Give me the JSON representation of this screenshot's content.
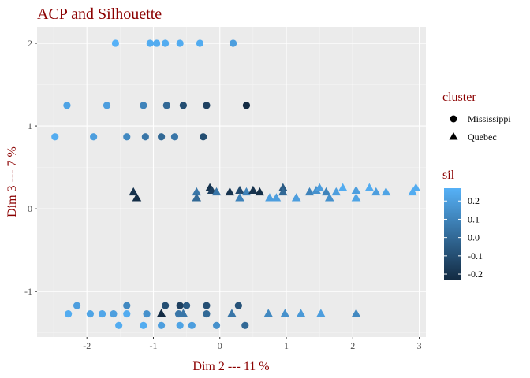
{
  "chart_data": {
    "type": "scatter",
    "title": "ACP and Silhouette",
    "xlabel": "Dim 2 --- 11 %",
    "ylabel": "Dim 3 --- 7 %",
    "xlim": [
      -2.75,
      3.1
    ],
    "ylim": [
      -1.55,
      2.2
    ],
    "xticks": [
      -2,
      -1,
      0,
      1,
      2,
      3
    ],
    "yticks": [
      -1,
      0,
      1,
      2
    ],
    "xtick_labels": [
      "-2",
      "-1",
      "0",
      "1",
      "2",
      "3"
    ],
    "ytick_labels": [
      "-1",
      "0",
      "1",
      "2"
    ],
    "grid": true,
    "legend_shape": {
      "title": "cluster",
      "entries": [
        {
          "label": "Mississippi",
          "shape": "circle"
        },
        {
          "label": "Quebec",
          "shape": "triangle"
        }
      ]
    },
    "legend_color": {
      "title": "sil",
      "low_color": "#132B43",
      "high_color": "#56B1F7",
      "range": [
        -0.23,
        0.27
      ],
      "ticks": [
        0.2,
        0.1,
        0.0,
        -0.1,
        -0.2
      ],
      "tick_labels": [
        "0.2",
        "0.1",
        "0.0",
        "-0.1",
        "-0.2"
      ]
    },
    "series": [
      {
        "name": "Mississippi",
        "shape": "circle",
        "points": [
          {
            "x": -1.57,
            "y": 2.0,
            "sil": 0.27
          },
          {
            "x": -1.05,
            "y": 2.0,
            "sil": 0.25
          },
          {
            "x": -0.95,
            "y": 2.0,
            "sil": 0.25
          },
          {
            "x": -0.82,
            "y": 2.0,
            "sil": 0.25
          },
          {
            "x": -0.6,
            "y": 2.0,
            "sil": 0.25
          },
          {
            "x": -0.3,
            "y": 2.0,
            "sil": 0.25
          },
          {
            "x": 0.2,
            "y": 2.0,
            "sil": 0.2
          },
          {
            "x": -2.3,
            "y": 1.25,
            "sil": 0.22
          },
          {
            "x": -1.7,
            "y": 1.25,
            "sil": 0.2
          },
          {
            "x": -1.15,
            "y": 1.25,
            "sil": 0.1
          },
          {
            "x": -0.8,
            "y": 1.25,
            "sil": 0.0
          },
          {
            "x": -0.55,
            "y": 1.25,
            "sil": -0.1
          },
          {
            "x": -0.2,
            "y": 1.25,
            "sil": -0.15
          },
          {
            "x": 0.4,
            "y": 1.25,
            "sil": -0.23
          },
          {
            "x": -2.48,
            "y": 0.87,
            "sil": 0.25
          },
          {
            "x": -1.9,
            "y": 0.87,
            "sil": 0.2
          },
          {
            "x": -1.4,
            "y": 0.87,
            "sil": 0.12
          },
          {
            "x": -1.12,
            "y": 0.87,
            "sil": 0.05
          },
          {
            "x": -0.88,
            "y": 0.87,
            "sil": 0.0
          },
          {
            "x": -0.68,
            "y": 0.87,
            "sil": 0.05
          },
          {
            "x": -0.25,
            "y": 0.87,
            "sil": -0.1
          },
          {
            "x": -2.15,
            "y": -1.17,
            "sil": 0.2
          },
          {
            "x": -1.4,
            "y": -1.17,
            "sil": 0.12
          },
          {
            "x": -0.82,
            "y": -1.17,
            "sil": -0.1
          },
          {
            "x": -0.6,
            "y": -1.17,
            "sil": -0.15
          },
          {
            "x": -0.5,
            "y": -1.17,
            "sil": -0.05
          },
          {
            "x": -0.2,
            "y": -1.17,
            "sil": -0.1
          },
          {
            "x": 0.28,
            "y": -1.17,
            "sil": -0.08
          },
          {
            "x": -2.28,
            "y": -1.27,
            "sil": 0.25
          },
          {
            "x": -1.95,
            "y": -1.27,
            "sil": 0.22
          },
          {
            "x": -1.77,
            "y": -1.27,
            "sil": 0.23
          },
          {
            "x": -1.6,
            "y": -1.27,
            "sil": 0.2
          },
          {
            "x": -1.4,
            "y": -1.27,
            "sil": 0.25
          },
          {
            "x": -1.1,
            "y": -1.27,
            "sil": 0.15
          },
          {
            "x": -0.62,
            "y": -1.27,
            "sil": 0.05
          },
          {
            "x": -0.2,
            "y": -1.27,
            "sil": 0.0
          },
          {
            "x": -1.52,
            "y": -1.41,
            "sil": 0.25
          },
          {
            "x": -1.15,
            "y": -1.41,
            "sil": 0.25
          },
          {
            "x": -0.88,
            "y": -1.41,
            "sil": 0.2
          },
          {
            "x": -0.6,
            "y": -1.41,
            "sil": 0.22
          },
          {
            "x": -0.42,
            "y": -1.41,
            "sil": 0.2
          },
          {
            "x": -0.05,
            "y": -1.41,
            "sil": 0.15
          },
          {
            "x": 0.38,
            "y": -1.41,
            "sil": 0.0
          }
        ]
      },
      {
        "name": "Quebec",
        "shape": "triangle",
        "points": [
          {
            "x": -1.3,
            "y": 0.2,
            "sil": -0.2
          },
          {
            "x": -1.25,
            "y": 0.13,
            "sil": -0.22
          },
          {
            "x": -0.35,
            "y": 0.2,
            "sil": 0.05
          },
          {
            "x": -0.35,
            "y": 0.13,
            "sil": 0.0
          },
          {
            "x": -0.15,
            "y": 0.25,
            "sil": -0.2
          },
          {
            "x": -0.12,
            "y": 0.22,
            "sil": -0.15
          },
          {
            "x": -0.05,
            "y": 0.2,
            "sil": 0.05
          },
          {
            "x": 0.15,
            "y": 0.2,
            "sil": -0.2
          },
          {
            "x": 0.3,
            "y": 0.22,
            "sil": -0.12
          },
          {
            "x": 0.3,
            "y": 0.13,
            "sil": 0.1
          },
          {
            "x": 0.4,
            "y": 0.2,
            "sil": 0.1
          },
          {
            "x": 0.5,
            "y": 0.22,
            "sil": -0.2
          },
          {
            "x": 0.6,
            "y": 0.2,
            "sil": -0.22
          },
          {
            "x": 0.75,
            "y": 0.13,
            "sil": 0.2
          },
          {
            "x": 0.85,
            "y": 0.13,
            "sil": 0.2
          },
          {
            "x": 0.95,
            "y": 0.25,
            "sil": -0.05
          },
          {
            "x": 0.95,
            "y": 0.2,
            "sil": 0.0
          },
          {
            "x": 1.15,
            "y": 0.13,
            "sil": 0.2
          },
          {
            "x": 1.35,
            "y": 0.2,
            "sil": 0.1
          },
          {
            "x": 1.45,
            "y": 0.22,
            "sil": 0.15
          },
          {
            "x": 1.5,
            "y": 0.25,
            "sil": 0.2
          },
          {
            "x": 1.6,
            "y": 0.2,
            "sil": 0.1
          },
          {
            "x": 1.65,
            "y": 0.13,
            "sil": 0.15
          },
          {
            "x": 1.75,
            "y": 0.2,
            "sil": 0.2
          },
          {
            "x": 1.85,
            "y": 0.25,
            "sil": 0.25
          },
          {
            "x": 2.05,
            "y": 0.22,
            "sil": 0.2
          },
          {
            "x": 2.05,
            "y": 0.13,
            "sil": 0.22
          },
          {
            "x": 2.25,
            "y": 0.25,
            "sil": 0.25
          },
          {
            "x": 2.35,
            "y": 0.2,
            "sil": 0.2
          },
          {
            "x": 2.5,
            "y": 0.2,
            "sil": 0.22
          },
          {
            "x": 2.9,
            "y": 0.2,
            "sil": 0.25
          },
          {
            "x": 2.95,
            "y": 0.25,
            "sil": 0.25
          },
          {
            "x": -0.88,
            "y": -1.27,
            "sil": -0.23
          },
          {
            "x": -0.55,
            "y": -1.27,
            "sil": 0.05
          },
          {
            "x": 0.18,
            "y": -1.27,
            "sil": 0.05
          },
          {
            "x": 0.73,
            "y": -1.27,
            "sil": 0.12
          },
          {
            "x": 0.98,
            "y": -1.27,
            "sil": 0.15
          },
          {
            "x": 1.22,
            "y": -1.27,
            "sil": 0.18
          },
          {
            "x": 1.52,
            "y": -1.27,
            "sil": 0.2
          },
          {
            "x": 2.05,
            "y": -1.27,
            "sil": 0.12
          }
        ]
      }
    ]
  }
}
